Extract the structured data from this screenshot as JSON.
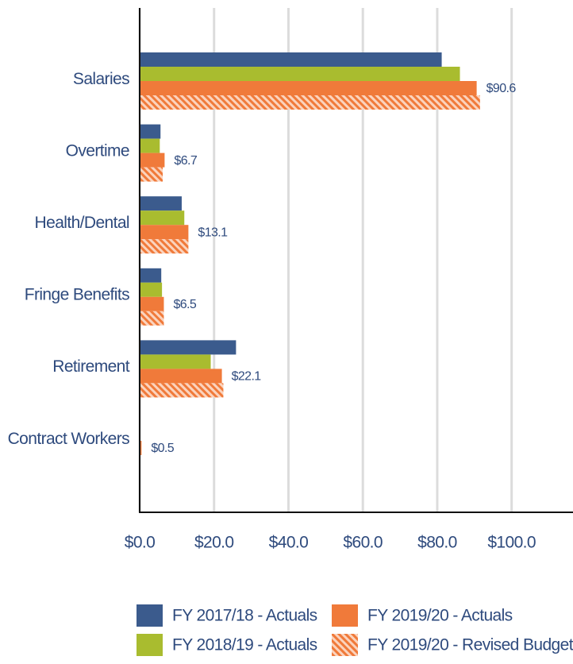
{
  "chart_data": {
    "type": "hbar",
    "categories": [
      "Salaries",
      "Overtime",
      "Health/Dental",
      "Fringe Benefits",
      "Retirement",
      "Contract Workers"
    ],
    "series": [
      {
        "name": "FY 2017/18 - Actuals",
        "color": "#3b5b8d",
        "values": [
          81.2,
          5.6,
          11.3,
          5.8,
          25.9,
          0
        ]
      },
      {
        "name": "FY 2018/19 - Actuals",
        "color": "#a9bc2f",
        "values": [
          86.1,
          5.4,
          12.0,
          6.0,
          19.1,
          0
        ]
      },
      {
        "name": "FY 2019/20 - Actuals",
        "color": "#f07a3a",
        "values": [
          90.6,
          6.7,
          13.1,
          6.5,
          22.1,
          0.5
        ],
        "value_labels": [
          "$90.6",
          "$6.7",
          "$13.1",
          "$6.5",
          "$22.1",
          "$0.5"
        ]
      },
      {
        "name": "FY 2019/20 - Revised Budget",
        "color": "#f07a3a",
        "pattern": "hatch",
        "values": [
          91.5,
          6.2,
          13.1,
          6.5,
          22.5,
          0
        ]
      }
    ],
    "xlim": [
      0,
      116.5
    ],
    "xticks": [
      {
        "value": 0,
        "label": "$0.0"
      },
      {
        "value": 20,
        "label": "$20.0"
      },
      {
        "value": 40,
        "label": "$40.0"
      },
      {
        "value": 60,
        "label": "$60.0"
      },
      {
        "value": 80,
        "label": "$80.0"
      },
      {
        "value": 100,
        "label": "$100.0"
      }
    ],
    "grid": true
  }
}
